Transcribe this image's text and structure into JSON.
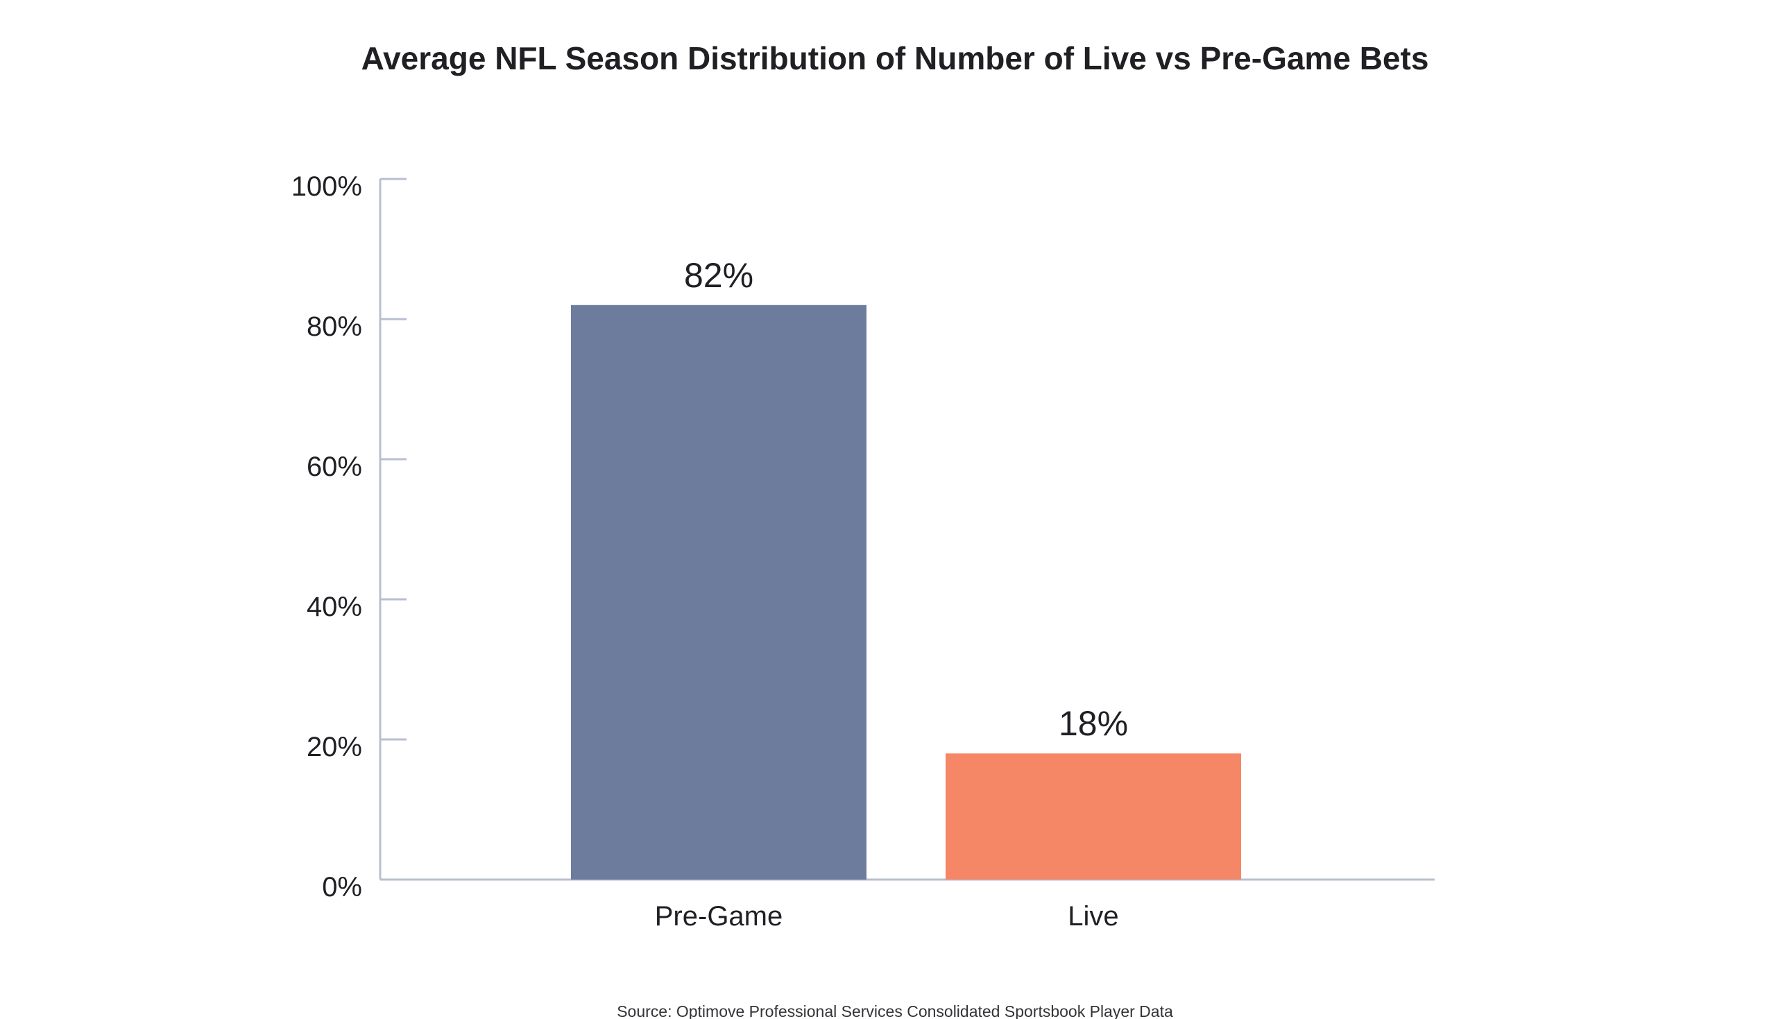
{
  "chart_data": {
    "type": "bar",
    "title": "Average NFL Season Distribution of Number of Live vs Pre-Game Bets",
    "categories": [
      "Pre-Game",
      "Live"
    ],
    "values": [
      82,
      18
    ],
    "data_labels": [
      "82%",
      "18%"
    ],
    "colors": [
      "#6d7b9c",
      "#f58666"
    ],
    "xlabel": "",
    "ylabel": "",
    "ylim": [
      0,
      100
    ],
    "yticks": [
      0,
      20,
      40,
      60,
      80,
      100
    ],
    "ytick_labels": [
      "0%",
      "20%",
      "40%",
      "60%",
      "80%",
      "100%"
    ],
    "grid": false,
    "legend": "none",
    "source": "Source: Optimove Professional Services Consolidated Sportsbook Player Data",
    "axis_color": "#b7bfd0"
  }
}
